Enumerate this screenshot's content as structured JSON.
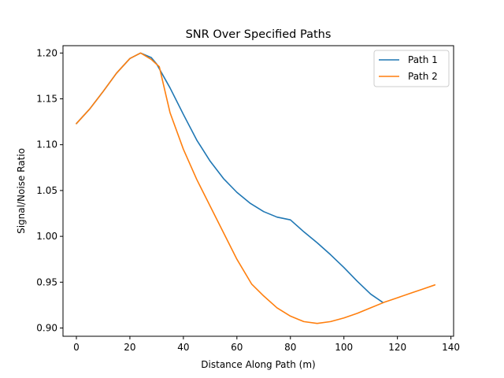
{
  "chart_data": {
    "type": "line",
    "title": "SNR Over Specified Paths",
    "xlabel": "Distance Along Path (m)",
    "ylabel": "Signal/Noise Ratio",
    "xlim": [
      -5,
      141
    ],
    "ylim": [
      0.891,
      1.208
    ],
    "xticks": [
      0,
      20,
      40,
      60,
      80,
      100,
      120,
      140
    ],
    "xtick_labels": [
      "0",
      "20",
      "40",
      "60",
      "80",
      "100",
      "120",
      "140"
    ],
    "yticks": [
      0.9,
      0.95,
      1.0,
      1.05,
      1.1,
      1.15,
      1.2
    ],
    "ytick_labels": [
      "0.90",
      "0.95",
      "1.00",
      "1.05",
      "1.10",
      "1.15",
      "1.20"
    ],
    "grid": false,
    "legend_position": "top-right",
    "series": [
      {
        "name": "Path 1",
        "color": "#1f77b4",
        "x": [
          0,
          5,
          10,
          15,
          20,
          24,
          28,
          30,
          35,
          40,
          45,
          50,
          55,
          60,
          65,
          70,
          75,
          80,
          85,
          90,
          95,
          100,
          105,
          110,
          114.5
        ],
        "y": [
          1.123,
          1.139,
          1.158,
          1.178,
          1.194,
          1.2,
          1.195,
          1.188,
          1.162,
          1.133,
          1.105,
          1.082,
          1.063,
          1.048,
          1.036,
          1.027,
          1.021,
          1.018,
          1.005,
          0.993,
          0.98,
          0.966,
          0.951,
          0.937,
          0.928
        ]
      },
      {
        "name": "Path 2",
        "color": "#ff7f0e",
        "x": [
          0,
          5,
          10,
          15,
          20,
          24,
          28,
          31,
          35,
          40,
          45,
          50,
          55,
          60,
          65.5,
          70,
          75,
          80,
          85,
          90,
          95,
          100,
          105,
          110,
          115,
          120,
          125,
          130,
          134
        ],
        "y": [
          1.123,
          1.139,
          1.158,
          1.178,
          1.194,
          1.2,
          1.193,
          1.185,
          1.135,
          1.095,
          1.062,
          1.033,
          1.004,
          0.975,
          0.948,
          0.935,
          0.922,
          0.913,
          0.907,
          0.905,
          0.907,
          0.911,
          0.916,
          0.922,
          0.928,
          0.933,
          0.938,
          0.943,
          0.947
        ]
      }
    ]
  }
}
